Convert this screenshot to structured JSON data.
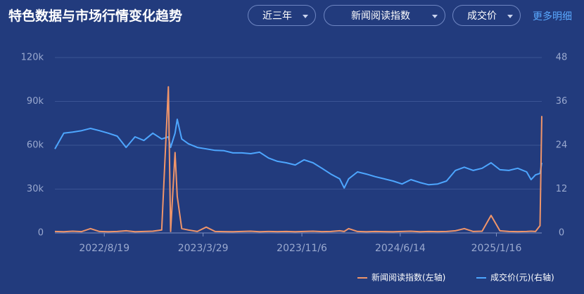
{
  "controls": {
    "title": "特色数据与市场行情变化趋势",
    "period": "近三年",
    "metric": "新闻阅读指数",
    "price": "成交价",
    "more": "更多明细"
  },
  "chart_data": {
    "type": "line",
    "x": [
      "2022/4/30",
      "2022/5/20",
      "2022/6/9",
      "2022/6/29",
      "2022/7/19",
      "2022/8/8",
      "2022/8/28",
      "2022/9/17",
      "2022/10/7",
      "2022/10/27",
      "2022/11/16",
      "2022/12/6",
      "2022/12/26",
      "2023/1/10",
      "2023/1/15",
      "2023/1/25",
      "2023/1/30",
      "2023/2/9",
      "2023/2/24",
      "2023/3/16",
      "2023/4/5",
      "2023/4/25",
      "2023/5/15",
      "2023/6/4",
      "2023/6/24",
      "2023/7/14",
      "2023/8/3",
      "2023/8/23",
      "2023/9/12",
      "2023/10/2",
      "2023/10/22",
      "2023/11/11",
      "2023/12/1",
      "2023/12/21",
      "2024/1/10",
      "2024/1/30",
      "2024/2/9",
      "2024/2/19",
      "2024/3/10",
      "2024/3/30",
      "2024/4/19",
      "2024/5/9",
      "2024/5/29",
      "2024/6/18",
      "2024/7/8",
      "2024/7/28",
      "2024/8/17",
      "2024/9/6",
      "2024/9/26",
      "2024/10/16",
      "2024/11/5",
      "2024/11/25",
      "2024/12/15",
      "2025/1/4",
      "2025/1/24",
      "2025/2/13",
      "2025/3/5",
      "2025/3/25",
      "2025/4/4",
      "2025/4/14",
      "2025/4/24",
      "2025/4/28"
    ],
    "xlim": [
      "2022/4/30",
      "2025/4/28"
    ],
    "xticks": [
      "2022/8/19",
      "2023/3/29",
      "2023/11/6",
      "2024/6/14",
      "2025/1/16"
    ],
    "ylim": [
      0,
      120000
    ],
    "yticks": [
      0,
      {
        "value": 30000,
        "label": "30k"
      },
      {
        "value": 60000,
        "label": "60k"
      },
      {
        "value": 90000,
        "label": "90k"
      },
      {
        "value": 120000,
        "label": "120k"
      }
    ],
    "y2lim": [
      0,
      48
    ],
    "y2ticks": [
      0,
      12,
      24,
      36,
      48
    ],
    "grid": true,
    "legend": "bottom-right",
    "series": [
      {
        "name": "新闻阅读指数(左轴)",
        "color": "#f0956a",
        "axis": "y",
        "values": [
          1000,
          800,
          1200,
          900,
          3000,
          1000,
          800,
          1000,
          1500,
          800,
          1000,
          1200,
          2000,
          100000,
          1000,
          55000,
          25000,
          3000,
          2000,
          1000,
          4000,
          1000,
          900,
          800,
          1000,
          1200,
          800,
          1000,
          900,
          1000,
          800,
          1000,
          1200,
          900,
          1000,
          1500,
          1000,
          3000,
          1000,
          800,
          1000,
          900,
          800,
          1000,
          1200,
          800,
          1000,
          900,
          1000,
          1500,
          3000,
          1000,
          1200,
          12000,
          1500,
          1000,
          900,
          1000,
          1200,
          1000,
          5000,
          80000
        ]
      },
      {
        "name": "成交价(元)(右轴)",
        "color": "#4da6ff",
        "axis": "y2",
        "values": [
          23.0,
          27.3,
          27.6,
          28.0,
          28.6,
          28.0,
          27.3,
          26.5,
          23.4,
          26.3,
          25.3,
          27.3,
          25.7,
          26.3,
          23.4,
          27.3,
          31.1,
          25.7,
          24.4,
          23.4,
          23.0,
          22.6,
          22.5,
          21.9,
          21.9,
          21.7,
          22.1,
          20.5,
          19.6,
          19.2,
          18.6,
          20.0,
          19.2,
          17.7,
          16.1,
          14.8,
          12.3,
          14.8,
          16.7,
          16.1,
          15.4,
          14.8,
          14.2,
          13.4,
          14.6,
          13.8,
          13.2,
          13.4,
          14.2,
          17.1,
          18.0,
          17.1,
          17.7,
          19.2,
          17.3,
          17.1,
          17.7,
          16.7,
          14.6,
          15.9,
          16.3,
          19.2
        ]
      }
    ]
  }
}
